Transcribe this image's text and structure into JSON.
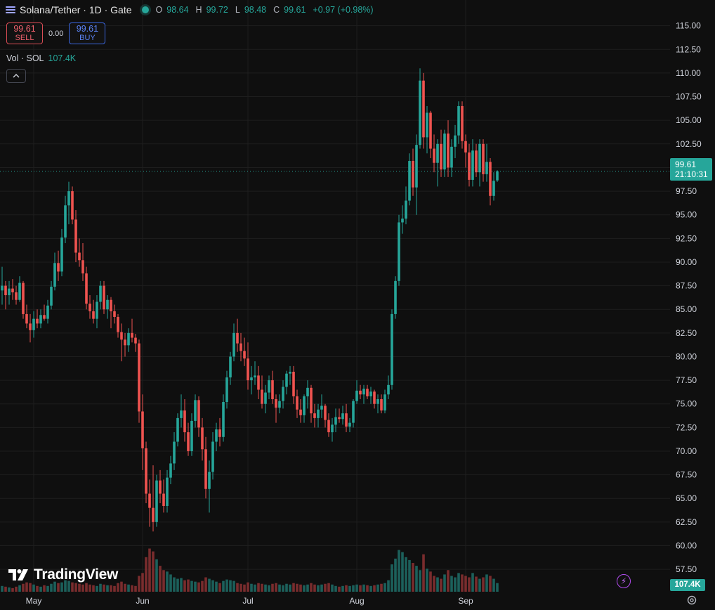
{
  "header": {
    "symbol": "Solana/Tether · 1D · Gate",
    "ohlc": [
      {
        "label": "O",
        "value": "98.64"
      },
      {
        "label": "H",
        "value": "99.72"
      },
      {
        "label": "L",
        "value": "98.48"
      },
      {
        "label": "C",
        "value": "99.61"
      }
    ],
    "change": "+0.97 (+0.98%)"
  },
  "trade": {
    "sell_price": "99.61",
    "sell_label": "SELL",
    "spread": "0.00",
    "buy_price": "99.61",
    "buy_label": "BUY"
  },
  "volume": {
    "label": "Vol · SOL",
    "value": "107.4K"
  },
  "price_tag": {
    "price": "99.61",
    "countdown": "21:10:31"
  },
  "brand": {
    "name": "TradingView"
  },
  "icons": {
    "menu": "hamburger-icon",
    "collapse": "chevron-up-icon",
    "logo": "tradingview-logo",
    "bolt": "lightning-icon",
    "settings": "gear-icon"
  },
  "colors": {
    "up": "#26a69a",
    "down": "#ef5350",
    "background": "#0f0f0f",
    "grid": "#1e1e1e"
  },
  "chart_data": {
    "type": "candlestick",
    "grid": true,
    "legend": "top-left",
    "ylim": [
      55.5,
      116.5
    ],
    "y_ticks": [
      "115.00",
      "112.50",
      "110.00",
      "107.50",
      "105.00",
      "102.50",
      "100.00",
      "97.50",
      "95.00",
      "92.50",
      "90.00",
      "87.50",
      "85.00",
      "82.50",
      "80.00",
      "77.50",
      "75.00",
      "72.50",
      "70.00",
      "67.50",
      "65.00",
      "62.50",
      "60.00",
      "57.50"
    ],
    "x_ticks": [
      "May",
      "Jun",
      "Jul",
      "Aug",
      "Sep"
    ],
    "x_tick_index": [
      9,
      40,
      70,
      101,
      132
    ],
    "last_price": 99.61,
    "volume_ylim": [
      0,
      122
    ],
    "candles": [
      {
        "o": 87.0,
        "h": 89.5,
        "l": 85.5,
        "c": 87.5,
        "v": 8
      },
      {
        "o": 87.5,
        "h": 88.0,
        "l": 85.0,
        "c": 86.5,
        "v": 7
      },
      {
        "o": 86.5,
        "h": 88.0,
        "l": 85.5,
        "c": 87.2,
        "v": 6
      },
      {
        "o": 87.2,
        "h": 88.2,
        "l": 86.0,
        "c": 86.8,
        "v": 5
      },
      {
        "o": 86.8,
        "h": 87.5,
        "l": 85.5,
        "c": 86.0,
        "v": 7
      },
      {
        "o": 86.0,
        "h": 88.5,
        "l": 85.8,
        "c": 87.8,
        "v": 9
      },
      {
        "o": 87.8,
        "h": 88.0,
        "l": 84.0,
        "c": 84.5,
        "v": 11
      },
      {
        "o": 84.5,
        "h": 85.5,
        "l": 83.0,
        "c": 83.5,
        "v": 13
      },
      {
        "o": 83.5,
        "h": 84.5,
        "l": 81.5,
        "c": 82.8,
        "v": 12
      },
      {
        "o": 82.8,
        "h": 84.8,
        "l": 82.0,
        "c": 84.0,
        "v": 10
      },
      {
        "o": 84.0,
        "h": 85.0,
        "l": 83.0,
        "c": 83.5,
        "v": 8
      },
      {
        "o": 83.5,
        "h": 85.0,
        "l": 83.0,
        "c": 84.4,
        "v": 7
      },
      {
        "o": 84.4,
        "h": 85.5,
        "l": 83.8,
        "c": 84.0,
        "v": 9
      },
      {
        "o": 84.0,
        "h": 86.0,
        "l": 83.5,
        "c": 85.4,
        "v": 8
      },
      {
        "o": 85.4,
        "h": 88.0,
        "l": 85.0,
        "c": 87.4,
        "v": 11
      },
      {
        "o": 87.4,
        "h": 91.0,
        "l": 87.0,
        "c": 89.9,
        "v": 14
      },
      {
        "o": 89.9,
        "h": 91.2,
        "l": 88.0,
        "c": 89.0,
        "v": 12
      },
      {
        "o": 89.0,
        "h": 93.5,
        "l": 88.5,
        "c": 92.6,
        "v": 13
      },
      {
        "o": 92.6,
        "h": 97.0,
        "l": 92.0,
        "c": 96.0,
        "v": 16
      },
      {
        "o": 96.0,
        "h": 98.5,
        "l": 94.0,
        "c": 97.5,
        "v": 15
      },
      {
        "o": 97.5,
        "h": 98.0,
        "l": 94.0,
        "c": 94.5,
        "v": 13
      },
      {
        "o": 94.5,
        "h": 95.5,
        "l": 90.0,
        "c": 91.0,
        "v": 12
      },
      {
        "o": 91.0,
        "h": 92.5,
        "l": 89.5,
        "c": 90.2,
        "v": 11
      },
      {
        "o": 90.2,
        "h": 92.0,
        "l": 88.0,
        "c": 88.8,
        "v": 10
      },
      {
        "o": 88.8,
        "h": 89.5,
        "l": 85.0,
        "c": 85.6,
        "v": 12
      },
      {
        "o": 85.6,
        "h": 86.5,
        "l": 84.0,
        "c": 84.8,
        "v": 10
      },
      {
        "o": 84.8,
        "h": 86.0,
        "l": 83.5,
        "c": 84.0,
        "v": 9
      },
      {
        "o": 84.0,
        "h": 86.5,
        "l": 83.0,
        "c": 85.8,
        "v": 8
      },
      {
        "o": 85.8,
        "h": 88.0,
        "l": 85.0,
        "c": 87.5,
        "v": 11
      },
      {
        "o": 87.5,
        "h": 88.0,
        "l": 84.5,
        "c": 85.0,
        "v": 10
      },
      {
        "o": 85.0,
        "h": 86.5,
        "l": 84.0,
        "c": 86.0,
        "v": 9
      },
      {
        "o": 86.0,
        "h": 86.3,
        "l": 83.0,
        "c": 84.8,
        "v": 9
      },
      {
        "o": 84.8,
        "h": 85.5,
        "l": 83.5,
        "c": 84.2,
        "v": 8
      },
      {
        "o": 84.2,
        "h": 84.5,
        "l": 82.0,
        "c": 82.6,
        "v": 12
      },
      {
        "o": 82.6,
        "h": 83.5,
        "l": 79.5,
        "c": 81.8,
        "v": 14
      },
      {
        "o": 81.8,
        "h": 82.5,
        "l": 80.0,
        "c": 81.2,
        "v": 11
      },
      {
        "o": 81.2,
        "h": 83.0,
        "l": 80.5,
        "c": 82.5,
        "v": 10
      },
      {
        "o": 82.5,
        "h": 84.0,
        "l": 81.5,
        "c": 82.0,
        "v": 9
      },
      {
        "o": 82.0,
        "h": 82.4,
        "l": 80.5,
        "c": 81.4,
        "v": 8
      },
      {
        "o": 81.4,
        "h": 81.8,
        "l": 73.0,
        "c": 74.2,
        "v": 22
      },
      {
        "o": 74.2,
        "h": 76.0,
        "l": 68.0,
        "c": 70.3,
        "v": 26
      },
      {
        "o": 70.3,
        "h": 71.0,
        "l": 64.5,
        "c": 65.5,
        "v": 48
      },
      {
        "o": 65.5,
        "h": 67.0,
        "l": 62.0,
        "c": 64.0,
        "v": 60
      },
      {
        "o": 64.0,
        "h": 68.5,
        "l": 61.5,
        "c": 62.5,
        "v": 56
      },
      {
        "o": 62.5,
        "h": 67.5,
        "l": 62.0,
        "c": 66.9,
        "v": 45
      },
      {
        "o": 66.9,
        "h": 68.0,
        "l": 64.5,
        "c": 65.5,
        "v": 36
      },
      {
        "o": 65.5,
        "h": 67.0,
        "l": 63.5,
        "c": 64.2,
        "v": 30
      },
      {
        "o": 64.2,
        "h": 68.0,
        "l": 63.5,
        "c": 67.2,
        "v": 28
      },
      {
        "o": 67.2,
        "h": 69.5,
        "l": 66.5,
        "c": 68.7,
        "v": 24
      },
      {
        "o": 68.7,
        "h": 72.0,
        "l": 68.0,
        "c": 71.0,
        "v": 20
      },
      {
        "o": 71.0,
        "h": 74.0,
        "l": 70.5,
        "c": 73.5,
        "v": 18
      },
      {
        "o": 73.5,
        "h": 76.0,
        "l": 72.5,
        "c": 74.3,
        "v": 19
      },
      {
        "o": 74.3,
        "h": 75.5,
        "l": 71.0,
        "c": 72.0,
        "v": 16
      },
      {
        "o": 72.0,
        "h": 73.0,
        "l": 69.5,
        "c": 70.0,
        "v": 17
      },
      {
        "o": 70.0,
        "h": 74.0,
        "l": 69.5,
        "c": 73.2,
        "v": 15
      },
      {
        "o": 73.2,
        "h": 76.0,
        "l": 72.5,
        "c": 75.4,
        "v": 14
      },
      {
        "o": 75.4,
        "h": 75.8,
        "l": 71.5,
        "c": 72.5,
        "v": 13
      },
      {
        "o": 72.5,
        "h": 73.5,
        "l": 69.0,
        "c": 70.2,
        "v": 15
      },
      {
        "o": 70.2,
        "h": 71.5,
        "l": 65.0,
        "c": 66.0,
        "v": 20
      },
      {
        "o": 66.0,
        "h": 69.0,
        "l": 63.5,
        "c": 67.8,
        "v": 18
      },
      {
        "o": 67.8,
        "h": 72.0,
        "l": 67.0,
        "c": 71.0,
        "v": 16
      },
      {
        "o": 71.0,
        "h": 73.0,
        "l": 70.0,
        "c": 72.3,
        "v": 14
      },
      {
        "o": 72.3,
        "h": 73.5,
        "l": 70.5,
        "c": 71.5,
        "v": 12
      },
      {
        "o": 71.5,
        "h": 76.0,
        "l": 71.0,
        "c": 75.2,
        "v": 15
      },
      {
        "o": 75.2,
        "h": 78.5,
        "l": 74.5,
        "c": 77.8,
        "v": 17
      },
      {
        "o": 77.8,
        "h": 80.5,
        "l": 77.0,
        "c": 80.0,
        "v": 16
      },
      {
        "o": 80.0,
        "h": 83.5,
        "l": 79.5,
        "c": 82.5,
        "v": 15
      },
      {
        "o": 82.5,
        "h": 84.0,
        "l": 80.5,
        "c": 81.4,
        "v": 12
      },
      {
        "o": 81.4,
        "h": 82.5,
        "l": 79.5,
        "c": 80.6,
        "v": 11
      },
      {
        "o": 80.6,
        "h": 82.0,
        "l": 79.0,
        "c": 79.8,
        "v": 10
      },
      {
        "o": 79.8,
        "h": 81.5,
        "l": 76.5,
        "c": 77.5,
        "v": 13
      },
      {
        "o": 77.5,
        "h": 79.0,
        "l": 76.0,
        "c": 77.8,
        "v": 11
      },
      {
        "o": 77.8,
        "h": 79.5,
        "l": 77.0,
        "c": 78.0,
        "v": 10
      },
      {
        "o": 78.0,
        "h": 79.0,
        "l": 75.5,
        "c": 76.5,
        "v": 12
      },
      {
        "o": 76.5,
        "h": 78.0,
        "l": 74.5,
        "c": 75.0,
        "v": 11
      },
      {
        "o": 75.0,
        "h": 77.0,
        "l": 74.0,
        "c": 76.2,
        "v": 10
      },
      {
        "o": 76.2,
        "h": 78.0,
        "l": 75.5,
        "c": 77.5,
        "v": 9
      },
      {
        "o": 77.5,
        "h": 78.5,
        "l": 75.0,
        "c": 75.5,
        "v": 11
      },
      {
        "o": 75.5,
        "h": 76.0,
        "l": 73.0,
        "c": 74.6,
        "v": 12
      },
      {
        "o": 74.6,
        "h": 76.0,
        "l": 74.0,
        "c": 75.3,
        "v": 10
      },
      {
        "o": 75.3,
        "h": 77.5,
        "l": 74.5,
        "c": 76.8,
        "v": 9
      },
      {
        "o": 76.8,
        "h": 78.5,
        "l": 76.0,
        "c": 78.2,
        "v": 11
      },
      {
        "o": 78.2,
        "h": 79.0,
        "l": 77.0,
        "c": 78.4,
        "v": 10
      },
      {
        "o": 78.4,
        "h": 79.0,
        "l": 75.0,
        "c": 75.8,
        "v": 12
      },
      {
        "o": 75.8,
        "h": 76.5,
        "l": 73.5,
        "c": 74.4,
        "v": 11
      },
      {
        "o": 74.4,
        "h": 75.5,
        "l": 73.0,
        "c": 73.8,
        "v": 10
      },
      {
        "o": 73.8,
        "h": 76.0,
        "l": 73.0,
        "c": 75.8,
        "v": 9
      },
      {
        "o": 75.8,
        "h": 77.5,
        "l": 74.5,
        "c": 76.7,
        "v": 10
      },
      {
        "o": 76.7,
        "h": 77.0,
        "l": 73.0,
        "c": 74.0,
        "v": 12
      },
      {
        "o": 74.0,
        "h": 75.0,
        "l": 72.5,
        "c": 73.5,
        "v": 10
      },
      {
        "o": 73.5,
        "h": 75.0,
        "l": 72.5,
        "c": 74.4,
        "v": 9
      },
      {
        "o": 74.4,
        "h": 76.0,
        "l": 73.5,
        "c": 74.8,
        "v": 10
      },
      {
        "o": 74.8,
        "h": 75.0,
        "l": 72.5,
        "c": 73.3,
        "v": 11
      },
      {
        "o": 73.3,
        "h": 74.0,
        "l": 71.5,
        "c": 72.0,
        "v": 12
      },
      {
        "o": 72.0,
        "h": 73.5,
        "l": 71.0,
        "c": 72.8,
        "v": 10
      },
      {
        "o": 72.8,
        "h": 74.5,
        "l": 72.0,
        "c": 73.6,
        "v": 8
      },
      {
        "o": 73.6,
        "h": 74.5,
        "l": 73.0,
        "c": 73.4,
        "v": 7
      },
      {
        "o": 73.4,
        "h": 74.8,
        "l": 72.8,
        "c": 74.0,
        "v": 8
      },
      {
        "o": 74.0,
        "h": 75.0,
        "l": 72.0,
        "c": 72.6,
        "v": 9
      },
      {
        "o": 72.6,
        "h": 73.5,
        "l": 72.0,
        "c": 73.0,
        "v": 8
      },
      {
        "o": 73.0,
        "h": 75.5,
        "l": 72.5,
        "c": 75.3,
        "v": 9
      },
      {
        "o": 75.3,
        "h": 77.5,
        "l": 75.0,
        "c": 76.4,
        "v": 10
      },
      {
        "o": 76.4,
        "h": 77.0,
        "l": 75.5,
        "c": 76.0,
        "v": 9
      },
      {
        "o": 76.0,
        "h": 77.0,
        "l": 75.0,
        "c": 76.6,
        "v": 10
      },
      {
        "o": 76.6,
        "h": 77.0,
        "l": 75.5,
        "c": 75.8,
        "v": 9
      },
      {
        "o": 75.8,
        "h": 76.8,
        "l": 75.0,
        "c": 76.3,
        "v": 8
      },
      {
        "o": 76.3,
        "h": 76.5,
        "l": 74.5,
        "c": 75.0,
        "v": 9
      },
      {
        "o": 75.0,
        "h": 76.0,
        "l": 74.0,
        "c": 75.5,
        "v": 10
      },
      {
        "o": 75.5,
        "h": 76.0,
        "l": 74.0,
        "c": 74.3,
        "v": 11
      },
      {
        "o": 74.3,
        "h": 76.5,
        "l": 74.0,
        "c": 76.0,
        "v": 12
      },
      {
        "o": 76.0,
        "h": 78.0,
        "l": 75.5,
        "c": 77.0,
        "v": 16
      },
      {
        "o": 77.0,
        "h": 85.0,
        "l": 76.5,
        "c": 84.5,
        "v": 38
      },
      {
        "o": 84.5,
        "h": 88.5,
        "l": 84.0,
        "c": 88.0,
        "v": 46
      },
      {
        "o": 88.0,
        "h": 95.0,
        "l": 87.5,
        "c": 94.2,
        "v": 58
      },
      {
        "o": 94.2,
        "h": 96.0,
        "l": 93.0,
        "c": 94.6,
        "v": 55
      },
      {
        "o": 94.6,
        "h": 98.0,
        "l": 94.0,
        "c": 96.5,
        "v": 48
      },
      {
        "o": 96.5,
        "h": 101.5,
        "l": 96.0,
        "c": 100.7,
        "v": 44
      },
      {
        "o": 100.7,
        "h": 102.0,
        "l": 97.0,
        "c": 97.9,
        "v": 40
      },
      {
        "o": 97.9,
        "h": 103.5,
        "l": 95.0,
        "c": 102.4,
        "v": 36
      },
      {
        "o": 102.4,
        "h": 110.5,
        "l": 102.0,
        "c": 109.2,
        "v": 30
      },
      {
        "o": 109.2,
        "h": 110.0,
        "l": 102.0,
        "c": 103.2,
        "v": 52
      },
      {
        "o": 103.2,
        "h": 106.5,
        "l": 101.5,
        "c": 105.8,
        "v": 32
      },
      {
        "o": 105.8,
        "h": 106.0,
        "l": 101.0,
        "c": 102.0,
        "v": 28
      },
      {
        "o": 102.0,
        "h": 103.5,
        "l": 99.5,
        "c": 100.5,
        "v": 22
      },
      {
        "o": 100.5,
        "h": 103.0,
        "l": 98.0,
        "c": 102.5,
        "v": 20
      },
      {
        "o": 102.5,
        "h": 104.0,
        "l": 99.0,
        "c": 99.8,
        "v": 18
      },
      {
        "o": 99.8,
        "h": 104.0,
        "l": 99.0,
        "c": 103.6,
        "v": 24
      },
      {
        "o": 103.6,
        "h": 105.0,
        "l": 99.0,
        "c": 100.0,
        "v": 30
      },
      {
        "o": 100.0,
        "h": 103.0,
        "l": 99.0,
        "c": 102.2,
        "v": 22
      },
      {
        "o": 102.2,
        "h": 104.5,
        "l": 101.0,
        "c": 103.4,
        "v": 20
      },
      {
        "o": 103.4,
        "h": 107.0,
        "l": 102.5,
        "c": 106.5,
        "v": 26
      },
      {
        "o": 106.5,
        "h": 107.0,
        "l": 102.0,
        "c": 102.8,
        "v": 24
      },
      {
        "o": 102.8,
        "h": 103.5,
        "l": 100.0,
        "c": 101.6,
        "v": 22
      },
      {
        "o": 101.6,
        "h": 102.5,
        "l": 98.0,
        "c": 98.7,
        "v": 20
      },
      {
        "o": 98.7,
        "h": 103.0,
        "l": 98.0,
        "c": 101.8,
        "v": 26
      },
      {
        "o": 101.8,
        "h": 102.5,
        "l": 99.0,
        "c": 99.5,
        "v": 21
      },
      {
        "o": 99.5,
        "h": 103.0,
        "l": 98.0,
        "c": 102.5,
        "v": 18
      },
      {
        "o": 102.5,
        "h": 103.0,
        "l": 98.5,
        "c": 99.3,
        "v": 20
      },
      {
        "o": 99.3,
        "h": 102.5,
        "l": 98.5,
        "c": 100.6,
        "v": 24
      },
      {
        "o": 100.6,
        "h": 101.0,
        "l": 96.0,
        "c": 97.0,
        "v": 22
      },
      {
        "o": 97.0,
        "h": 99.5,
        "l": 96.5,
        "c": 98.6,
        "v": 18
      },
      {
        "o": 98.64,
        "h": 99.72,
        "l": 98.48,
        "c": 99.61,
        "v": 12
      }
    ]
  }
}
